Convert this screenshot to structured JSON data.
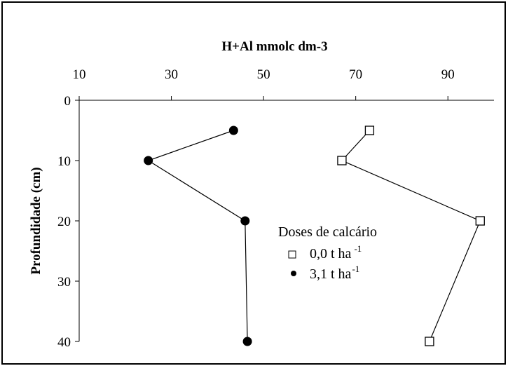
{
  "chart_data": {
    "type": "line",
    "xlabel": "H+Al mmolc dm-3",
    "ylabel": "Profundidade (cm)",
    "xlim": [
      10,
      100
    ],
    "ylim": [
      0,
      40
    ],
    "x_axis_position": "top",
    "y_axis_inverted": true,
    "grid": false,
    "xticks": [
      "10",
      "30",
      "50",
      "70",
      "90"
    ],
    "yticks": [
      "0",
      "10",
      "20",
      "30",
      "40"
    ],
    "legend": {
      "title": "Doses de calcário",
      "placement": "center-right",
      "entries": [
        {
          "marker": "open-square",
          "text": "0,0 t ha",
          "superscript": "-1"
        },
        {
          "marker": "filled-circle",
          "text": "3,1 t ha",
          "superscript": "-1"
        }
      ]
    },
    "series": [
      {
        "marker": "open-square",
        "color": "#000000",
        "points": [
          {
            "x": 73,
            "y": 5
          },
          {
            "x": 67,
            "y": 10
          },
          {
            "x": 97,
            "y": 20
          },
          {
            "x": 86,
            "y": 40
          }
        ]
      },
      {
        "marker": "filled-circle",
        "color": "#000000",
        "points": [
          {
            "x": 43.5,
            "y": 5
          },
          {
            "x": 25,
            "y": 10
          },
          {
            "x": 46,
            "y": 20
          },
          {
            "x": 46.5,
            "y": 40
          }
        ]
      }
    ]
  }
}
